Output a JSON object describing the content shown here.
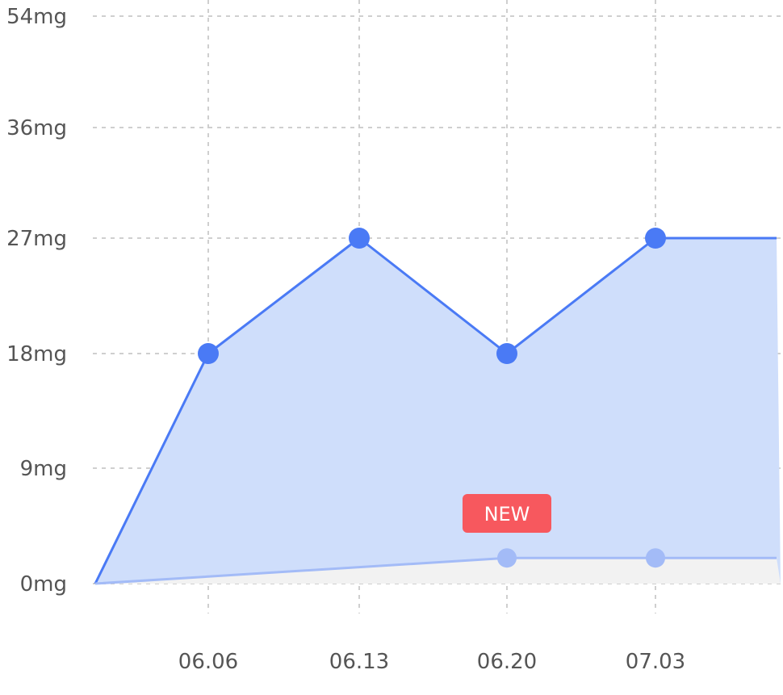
{
  "chart_data": {
    "type": "area",
    "title": "",
    "xlabel": "",
    "ylabel": "",
    "y_ticks": [
      0,
      9,
      18,
      27,
      36,
      54
    ],
    "y_tick_labels": [
      "0mg",
      "9mg",
      "18mg",
      "27mg",
      "36mg",
      "54mg"
    ],
    "x_ticks": [
      "06.06",
      "06.13",
      "06.20",
      "07.03"
    ],
    "grid": true,
    "legend": "none",
    "colors": {
      "primary_line": "#4a7af5",
      "primary_fill": "#cfdefb",
      "secondary_line": "#a3bbf7",
      "secondary_fill": "#f2f2f2",
      "badge": "#f7585e",
      "grid": "#cfcfcf",
      "tick_text": "#555555"
    },
    "series": [
      {
        "values": [
          {
            "x": "start",
            "y": 0
          },
          {
            "x": "06.06",
            "y": 18
          },
          {
            "x": "06.13",
            "y": 27
          },
          {
            "x": "06.20",
            "y": 18
          },
          {
            "x": "07.03",
            "y": 27
          },
          {
            "x": "end",
            "y": 27
          }
        ],
        "markers": [
          "06.06",
          "06.13",
          "06.20",
          "07.03"
        ]
      },
      {
        "values": [
          {
            "x": "start",
            "y": 0
          },
          {
            "x": "06.20",
            "y": 2
          },
          {
            "x": "07.03",
            "y": 2
          },
          {
            "x": "end",
            "y": 2
          }
        ],
        "markers": [
          "06.20",
          "07.03"
        ]
      }
    ],
    "annotations": [
      {
        "text": "NEW",
        "x": "06.20"
      }
    ]
  }
}
